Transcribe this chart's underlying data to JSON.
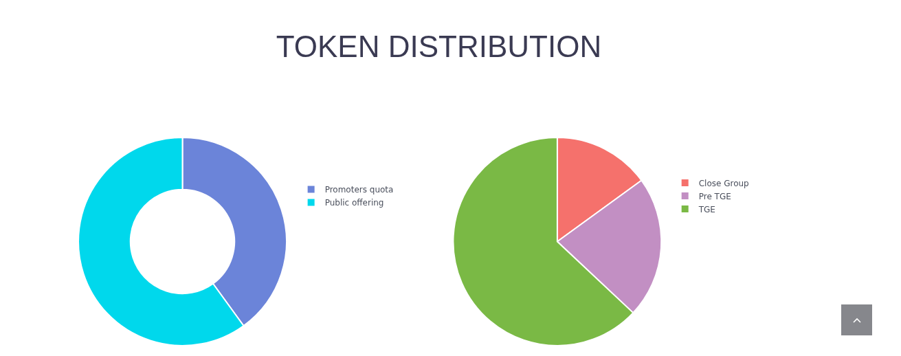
{
  "chart_data": [
    {
      "type": "donut",
      "title": "TOKEN DISTRIBUTION",
      "categories": [
        "Promoters quota",
        "Public offering"
      ],
      "values": [
        40,
        60
      ],
      "colors": [
        "#6b84d9",
        "#00d8ec"
      ],
      "legend": "right"
    },
    {
      "type": "pie",
      "categories": [
        "Close Group",
        "Pre TGE",
        "TGE"
      ],
      "values": [
        15,
        22,
        63
      ],
      "colors": [
        "#f5716c",
        "#c28fc3",
        "#7ab945"
      ],
      "legend": "right"
    }
  ]
}
